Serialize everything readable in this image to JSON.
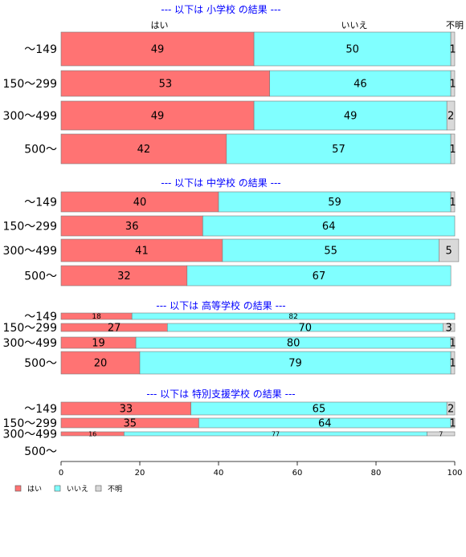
{
  "chart_data": {
    "type": "bar",
    "stacked": true,
    "orientation": "horizontal",
    "xlim": [
      0,
      100
    ],
    "x_ticks": [
      0,
      20,
      40,
      60,
      80,
      100
    ],
    "column_headers": [
      "はい",
      "いいえ",
      "不明"
    ],
    "series_names": [
      "はい",
      "いいえ",
      "不明"
    ],
    "colors": {
      "yes": "#ff7373",
      "no": "#80ffff",
      "unknown": "#d9d9d9",
      "title": "#0000ff"
    },
    "legend_position": "bottom-left",
    "grid": false,
    "panels": [
      {
        "title": "--- 以下は 小学校 の結果 ---",
        "categories": [
          "～149",
          "150～299",
          "300～499",
          "500～"
        ],
        "values": [
          [
            49,
            50,
            1
          ],
          [
            53,
            46,
            1
          ],
          [
            49,
            49,
            2
          ],
          [
            42,
            57,
            1
          ]
        ]
      },
      {
        "title": "--- 以下は 中学校 の結果 ---",
        "categories": [
          "～149",
          "150～299",
          "300～499",
          "500～"
        ],
        "values": [
          [
            40,
            59,
            1
          ],
          [
            36,
            64,
            0
          ],
          [
            41,
            55,
            5
          ],
          [
            32,
            67,
            0
          ]
        ]
      },
      {
        "title": "--- 以下は 高等学校 の結果 ---",
        "categories": [
          "～149",
          "150～299",
          "300～499",
          "500～"
        ],
        "values": [
          [
            18,
            82,
            0
          ],
          [
            27,
            70,
            3
          ],
          [
            19,
            80,
            1
          ],
          [
            20,
            79,
            1
          ]
        ]
      },
      {
        "title": "--- 以下は 特別支援学校 の結果 ---",
        "categories": [
          "～149",
          "150～299",
          "300～499",
          "500～"
        ],
        "values": [
          [
            33,
            65,
            2
          ],
          [
            35,
            64,
            1
          ],
          [
            16,
            77,
            7
          ],
          null
        ]
      }
    ]
  }
}
